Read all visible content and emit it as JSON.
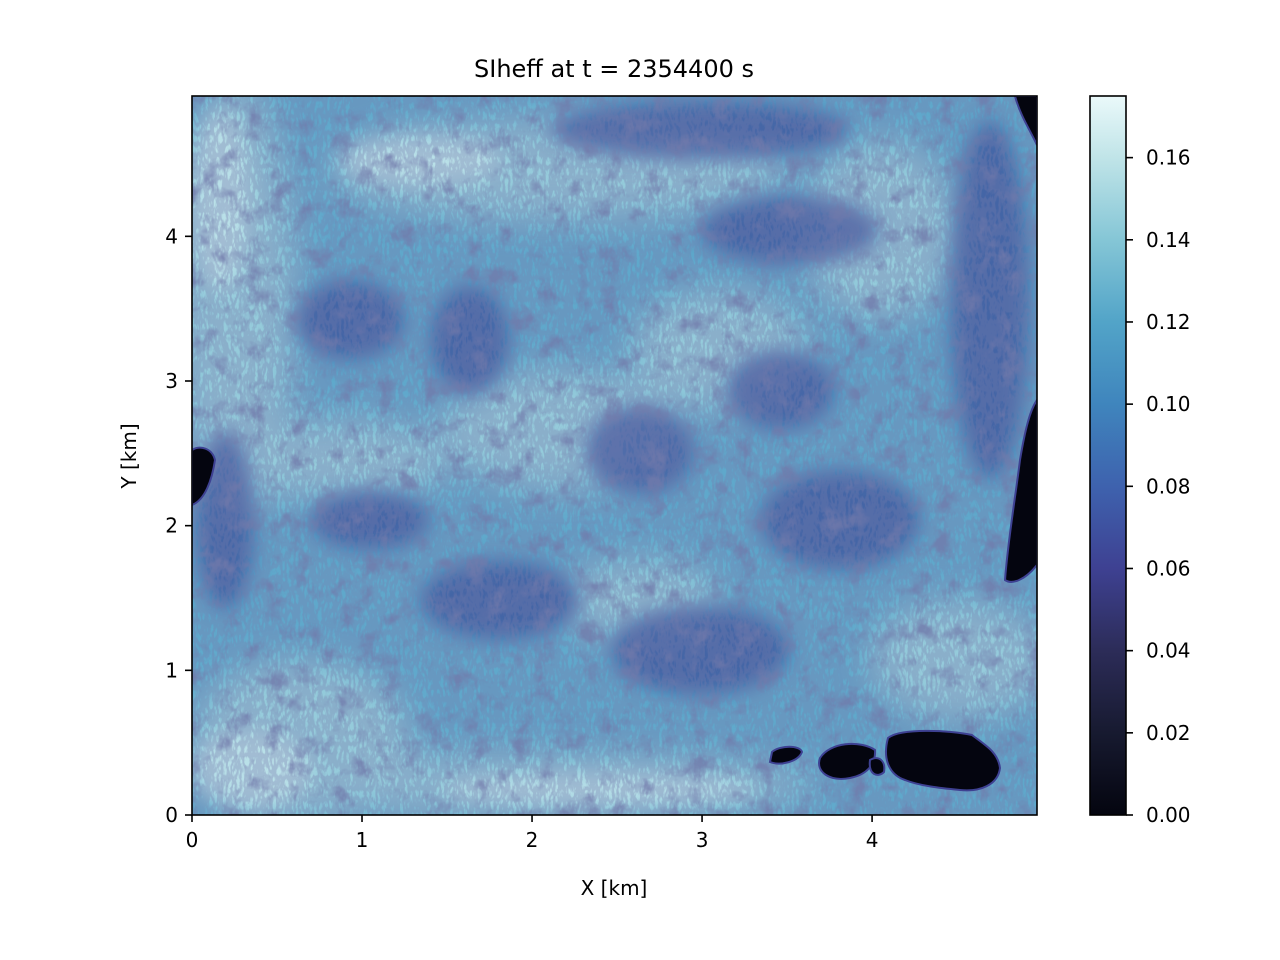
{
  "chart_data": {
    "type": "heatmap",
    "title": "SIheff at t = 2354400 s",
    "xlabel": "X [km]",
    "ylabel": "Y [km]",
    "xlim": [
      0,
      4.97
    ],
    "ylim": [
      0,
      4.97
    ],
    "xticks": [
      0,
      1,
      2,
      3,
      4
    ],
    "xtick_labels": [
      "0",
      "1",
      "2",
      "3",
      "4"
    ],
    "yticks": [
      0,
      1,
      2,
      3,
      4
    ],
    "ytick_labels": [
      "0",
      "1",
      "2",
      "3",
      "4"
    ],
    "colorbar": {
      "colormap": "ice",
      "range": [
        0,
        0.175
      ],
      "ticks": [
        0.0,
        0.02,
        0.04,
        0.06,
        0.08,
        0.1,
        0.12,
        0.14,
        0.16
      ],
      "tick_labels": [
        "0.00",
        "0.02",
        "0.04",
        "0.06",
        "0.08",
        "0.10",
        "0.12",
        "0.14",
        "0.16"
      ],
      "stops": [
        {
          "value": 0.0,
          "color": "#04050f"
        },
        {
          "value": 0.02,
          "color": "#171a30"
        },
        {
          "value": 0.04,
          "color": "#2c2c58"
        },
        {
          "value": 0.06,
          "color": "#3e4192"
        },
        {
          "value": 0.08,
          "color": "#3e62ae"
        },
        {
          "value": 0.1,
          "color": "#3f85bd"
        },
        {
          "value": 0.12,
          "color": "#52a4c8"
        },
        {
          "value": 0.14,
          "color": "#85c6d6"
        },
        {
          "value": 0.16,
          "color": "#c0e4e8"
        },
        {
          "value": 0.175,
          "color": "#eaf9fa"
        }
      ]
    }
  }
}
